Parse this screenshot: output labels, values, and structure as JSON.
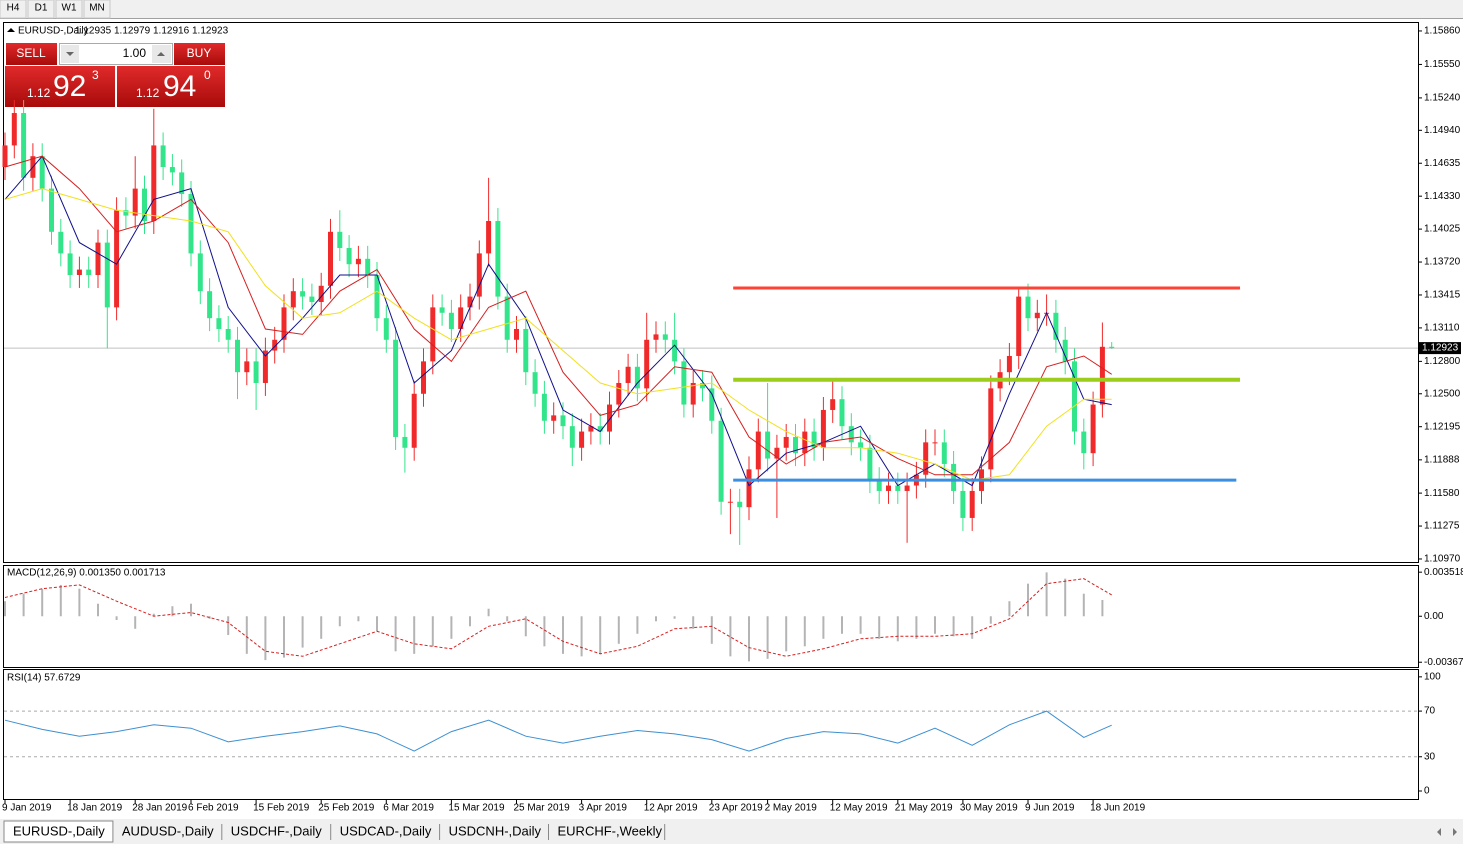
{
  "toolbar": [
    "H4",
    "D1",
    "W1",
    "MN"
  ],
  "trade_panel": {
    "sell": "SELL",
    "buy": "BUY",
    "lot": "1.00",
    "bid": {
      "big": "1.12",
      "main": "92",
      "sup": "3"
    },
    "ask": {
      "big": "1.12",
      "main": "94",
      "sup": "0"
    }
  },
  "chart_data": {
    "type": "candlestick",
    "title": "EURUSD-,Daily",
    "categories": [
      "9 Jan 2019",
      null,
      null,
      null,
      null,
      null,
      null,
      "18 Jan 2019",
      null,
      null,
      null,
      null,
      null,
      null,
      "28 Jan 2019",
      null,
      null,
      null,
      null,
      null,
      "6 Feb 2019",
      null,
      null,
      null,
      null,
      null,
      null,
      "15 Feb 2019",
      null,
      null,
      null,
      null,
      null,
      null,
      "25 Feb 2019",
      null,
      null,
      null,
      null,
      null,
      null,
      "6 Mar 2019",
      null,
      null,
      null,
      null,
      null,
      null,
      "15 Mar 2019",
      null,
      null,
      null,
      null,
      null,
      null,
      "25 Mar 2019",
      null,
      null,
      null,
      null,
      null,
      null,
      "3 Apr 2019",
      null,
      null,
      null,
      null,
      null,
      null,
      "12 Apr 2019",
      null,
      null,
      null,
      null,
      null,
      null,
      "23 Apr 2019",
      null,
      null,
      null,
      null,
      null,
      "2 May 2019",
      null,
      null,
      null,
      null,
      null,
      null,
      "12 May 2019",
      null,
      null,
      null,
      null,
      null,
      null,
      "21 May 2019",
      null,
      null,
      null,
      null,
      null,
      null,
      "30 May 2019",
      null,
      null,
      null,
      null,
      null,
      null,
      "9 Jun 2019",
      null,
      null,
      null,
      null,
      null,
      null,
      "18 Jun 2019",
      null,
      null
    ],
    "open": [
      1.146,
      1.148,
      1.151,
      1.145,
      1.147,
      1.144,
      1.14,
      1.138,
      1.136,
      1.1365,
      1.136,
      1.139,
      1.133,
      1.142,
      1.1415,
      1.144,
      1.141,
      1.148,
      1.146,
      1.1455,
      1.1435,
      1.138,
      1.1345,
      1.132,
      1.131,
      1.13,
      1.127,
      1.128,
      1.126,
      1.129,
      1.13,
      1.133,
      1.1345,
      1.134,
      1.1335,
      1.135,
      1.14,
      1.1385,
      1.137,
      1.1375,
      1.136,
      1.132,
      1.13,
      1.121,
      1.12,
      1.125,
      1.128,
      1.133,
      1.1325,
      1.131,
      1.133,
      1.134,
      1.138,
      1.141,
      1.134,
      1.13,
      1.131,
      1.127,
      1.125,
      1.1225,
      1.123,
      1.122,
      1.12,
      1.1215,
      1.122,
      1.1215,
      1.124,
      1.126,
      1.1275,
      1.1255,
      1.13,
      1.1305,
      1.13,
      1.128,
      1.124,
      1.126,
      1.1255,
      1.1225,
      1.115,
      1.115,
      1.1145,
      1.118,
      1.1215,
      1.119,
      1.12,
      1.121,
      1.1195,
      1.1215,
      1.12,
      1.1235,
      1.1245,
      1.122,
      1.1205,
      1.12,
      1.117,
      1.116,
      1.1165,
      1.116,
      1.1165,
      1.1175,
      1.1205,
      1.1205,
      1.1185,
      1.116,
      1.1135,
      1.116,
      1.118,
      1.1255,
      1.127,
      1.1285,
      1.134,
      1.132,
      1.1325,
      1.1325,
      1.13,
      1.128,
      1.1215,
      1.1195,
      1.124,
      1.12935
    ],
    "high": [
      1.1492,
      1.1522,
      1.1522,
      1.1482,
      1.1482,
      1.1452,
      1.1412,
      1.1392,
      1.1377,
      1.1377,
      1.1402,
      1.1402,
      1.1432,
      1.1432,
      1.147,
      1.1452,
      1.1514,
      1.1492,
      1.1472,
      1.1467,
      1.1447,
      1.1392,
      1.1357,
      1.1332,
      1.1322,
      1.1312,
      1.1292,
      1.1292,
      1.1302,
      1.1312,
      1.1342,
      1.1357,
      1.1357,
      1.1352,
      1.1362,
      1.1412,
      1.142,
      1.1397,
      1.1387,
      1.1387,
      1.1372,
      1.1332,
      1.1312,
      1.1222,
      1.1262,
      1.1292,
      1.1342,
      1.1342,
      1.1337,
      1.1342,
      1.1352,
      1.1392,
      1.145,
      1.1422,
      1.1352,
      1.1322,
      1.1322,
      1.1282,
      1.1262,
      1.1242,
      1.1242,
      1.1232,
      1.1227,
      1.1232,
      1.1232,
      1.1252,
      1.1272,
      1.1287,
      1.1287,
      1.1325,
      1.1317,
      1.1317,
      1.1325,
      1.1292,
      1.1272,
      1.1272,
      1.1267,
      1.1237,
      1.1162,
      1.1162,
      1.1192,
      1.1227,
      1.126,
      1.1212,
      1.1222,
      1.1222,
      1.1227,
      1.1227,
      1.1247,
      1.1262,
      1.1257,
      1.1232,
      1.1217,
      1.1212,
      1.1182,
      1.1177,
      1.1177,
      1.1177,
      1.1187,
      1.1217,
      1.1217,
      1.1217,
      1.1197,
      1.1172,
      1.1172,
      1.1192,
      1.1267,
      1.1282,
      1.1297,
      1.1348,
      1.1352,
      1.1337,
      1.1342,
      1.1337,
      1.1312,
      1.1292,
      1.1227,
      1.1252,
      1.1316,
      1.12979
    ],
    "low": [
      1.1448,
      1.1468,
      1.1438,
      1.1438,
      1.1428,
      1.1388,
      1.1368,
      1.1348,
      1.1348,
      1.1348,
      1.1348,
      1.1292,
      1.1318,
      1.1403,
      1.1403,
      1.1398,
      1.1398,
      1.1448,
      1.1443,
      1.1423,
      1.1368,
      1.1333,
      1.1308,
      1.1298,
      1.1288,
      1.1245,
      1.1258,
      1.1235,
      1.1248,
      1.1278,
      1.1288,
      1.1318,
      1.1328,
      1.1323,
      1.1323,
      1.1338,
      1.1373,
      1.1358,
      1.1358,
      1.1348,
      1.1308,
      1.1288,
      1.1198,
      1.1177,
      1.1188,
      1.1238,
      1.1268,
      1.1313,
      1.1298,
      1.1298,
      1.1318,
      1.1328,
      1.1368,
      1.1328,
      1.1288,
      1.1288,
      1.1258,
      1.1238,
      1.1213,
      1.1213,
      1.1208,
      1.1183,
      1.1188,
      1.1203,
      1.1203,
      1.1203,
      1.1228,
      1.1248,
      1.1243,
      1.1243,
      1.1288,
      1.1288,
      1.1268,
      1.1228,
      1.1228,
      1.1243,
      1.1213,
      1.1138,
      1.112,
      1.111,
      1.1133,
      1.1168,
      1.1178,
      1.1135,
      1.1188,
      1.1183,
      1.1183,
      1.1188,
      1.1188,
      1.1223,
      1.1208,
      1.1193,
      1.1188,
      1.1158,
      1.1148,
      1.1148,
      1.1148,
      1.1112,
      1.1153,
      1.1163,
      1.1193,
      1.1173,
      1.1148,
      1.1123,
      1.1123,
      1.1148,
      1.1168,
      1.1243,
      1.1258,
      1.1273,
      1.1308,
      1.1308,
      1.1313,
      1.1288,
      1.1268,
      1.1203,
      1.118,
      1.1183,
      1.1228,
      1.12916
    ],
    "close": [
      1.148,
      1.151,
      1.145,
      1.147,
      1.144,
      1.14,
      1.138,
      1.136,
      1.1365,
      1.136,
      1.139,
      1.133,
      1.142,
      1.1415,
      1.144,
      1.141,
      1.148,
      1.146,
      1.1455,
      1.1435,
      1.138,
      1.1345,
      1.132,
      1.131,
      1.13,
      1.127,
      1.128,
      1.126,
      1.129,
      1.13,
      1.133,
      1.1345,
      1.134,
      1.1335,
      1.135,
      1.14,
      1.1385,
      1.137,
      1.1375,
      1.136,
      1.132,
      1.13,
      1.121,
      1.12,
      1.125,
      1.128,
      1.133,
      1.1325,
      1.131,
      1.133,
      1.134,
      1.138,
      1.141,
      1.134,
      1.13,
      1.131,
      1.127,
      1.125,
      1.1225,
      1.123,
      1.122,
      1.12,
      1.1215,
      1.122,
      1.1215,
      1.124,
      1.126,
      1.1275,
      1.1255,
      1.13,
      1.1305,
      1.13,
      1.128,
      1.124,
      1.126,
      1.1255,
      1.1225,
      1.115,
      1.115,
      1.1145,
      1.118,
      1.1215,
      1.119,
      1.12,
      1.121,
      1.1195,
      1.1215,
      1.12,
      1.1235,
      1.1245,
      1.122,
      1.1205,
      1.12,
      1.117,
      1.116,
      1.1165,
      1.116,
      1.1165,
      1.1175,
      1.1205,
      1.1205,
      1.1185,
      1.116,
      1.1135,
      1.116,
      1.118,
      1.1255,
      1.127,
      1.1285,
      1.134,
      1.132,
      1.1325,
      1.1325,
      1.13,
      1.128,
      1.1215,
      1.1195,
      1.124,
      1.12935,
      1.12923
    ],
    "up_color": "#f02a2a",
    "down_color": "#33e58a",
    "ylim": [
      1.10942,
      1.15943
    ],
    "yticks": [
      {
        "value": 1.1586,
        "label": "1.15860"
      },
      {
        "value": 1.1555,
        "label": "1.15550"
      },
      {
        "value": 1.1524,
        "label": "1.15240"
      },
      {
        "value": 1.1494,
        "label": "1.14940"
      },
      1.14635,
      {
        "value": 1.1433,
        "label": "1.14330"
      },
      1.14025,
      {
        "value": 1.1372,
        "label": "1.13720"
      },
      1.13415,
      {
        "value": 1.1311,
        "label": "1.13110"
      },
      {
        "value": 1.128,
        "label": "1.12800"
      },
      {
        "value": 1.125,
        "label": "1.12500"
      },
      1.12195,
      1.11888,
      {
        "value": 1.1158,
        "label": "1.11580"
      },
      1.11275,
      {
        "value": 1.1097,
        "label": "1.10970"
      }
    ],
    "current_price": 1.12923,
    "moving_averages": [
      {
        "color": "#10108c",
        "x": [
          0,
          4,
          8,
          12,
          16,
          20,
          24,
          28,
          32,
          36,
          40,
          44,
          48,
          52,
          56,
          60,
          64,
          68,
          72,
          76,
          80,
          84,
          88,
          92,
          96,
          100,
          104,
          108,
          112,
          116,
          119
        ],
        "values": [
          1.143,
          1.147,
          1.139,
          1.137,
          1.143,
          1.144,
          1.133,
          1.1285,
          1.132,
          1.136,
          1.136,
          1.126,
          1.129,
          1.137,
          1.132,
          1.1235,
          1.1215,
          1.126,
          1.1295,
          1.125,
          1.1165,
          1.1195,
          1.1205,
          1.122,
          1.1165,
          1.1185,
          1.1165,
          1.125,
          1.1325,
          1.1245,
          1.124
        ]
      },
      {
        "color": "#d42020",
        "x": [
          0,
          4,
          8,
          12,
          16,
          20,
          24,
          28,
          32,
          36,
          40,
          44,
          48,
          52,
          56,
          60,
          64,
          68,
          72,
          76,
          80,
          84,
          88,
          92,
          96,
          100,
          104,
          108,
          112,
          116,
          119
        ],
        "values": [
          1.146,
          1.147,
          1.144,
          1.14,
          1.141,
          1.143,
          1.139,
          1.131,
          1.1305,
          1.1345,
          1.1365,
          1.131,
          1.128,
          1.133,
          1.1345,
          1.127,
          1.123,
          1.124,
          1.1275,
          1.127,
          1.121,
          1.1185,
          1.1205,
          1.121,
          1.119,
          1.1175,
          1.1175,
          1.1205,
          1.1275,
          1.1285,
          1.1268
        ]
      },
      {
        "color": "#f2e01c",
        "x": [
          0,
          4,
          8,
          12,
          16,
          20,
          24,
          28,
          32,
          36,
          40,
          44,
          48,
          52,
          56,
          60,
          64,
          68,
          72,
          76,
          80,
          84,
          88,
          92,
          96,
          100,
          104,
          108,
          112,
          116,
          119
        ],
        "values": [
          1.143,
          1.144,
          1.143,
          1.142,
          1.1415,
          1.141,
          1.14,
          1.135,
          1.132,
          1.1325,
          1.1345,
          1.132,
          1.13,
          1.131,
          1.132,
          1.129,
          1.126,
          1.125,
          1.1255,
          1.126,
          1.1235,
          1.1215,
          1.12,
          1.12,
          1.1195,
          1.1185,
          1.117,
          1.1175,
          1.122,
          1.1245,
          1.1245
        ]
      }
    ],
    "levels": [
      {
        "value": 1.1348,
        "color": "#ff4136",
        "width": 3,
        "x": [
          78.3,
          132.8
        ]
      },
      {
        "value": 1.1263,
        "color": "#9ccc1c",
        "width": 4,
        "x": [
          78.3,
          132.8
        ]
      },
      {
        "value": 1.117,
        "color": "#3a8fe0",
        "width": 3,
        "x": [
          78.3,
          132.4
        ]
      }
    ],
    "macd": {
      "title": "MACD(12,26,9) 0.001350 0.001713",
      "ylim": [
        -0.00405,
        0.00401
      ],
      "yticks": [
        0.003518,
        {
          "value": 0,
          "label": "0.00"
        },
        -0.00367
      ],
      "histogram": {
        "color": "#b4b4b4",
        "x": [
          0,
          2,
          4,
          6,
          8,
          10,
          12,
          14,
          16,
          18,
          20,
          22,
          24,
          26,
          28,
          30,
          32,
          34,
          36,
          38,
          40,
          42,
          44,
          46,
          48,
          50,
          52,
          54,
          56,
          58,
          60,
          62,
          64,
          66,
          68,
          70,
          72,
          74,
          76,
          78,
          80,
          82,
          84,
          86,
          88,
          90,
          92,
          94,
          96,
          98,
          100,
          102,
          104,
          106,
          108,
          110,
          112,
          114,
          116,
          118
        ],
        "values": [
          0.0012,
          0.0018,
          0.0022,
          0.0025,
          0.0022,
          0.001,
          -0.0003,
          -0.001,
          0.0002,
          0.0008,
          0.001,
          -0.0002,
          -0.0015,
          -0.003,
          -0.0035,
          -0.0033,
          -0.0025,
          -0.0018,
          -0.0008,
          -0.0004,
          -0.0012,
          -0.0028,
          -0.003,
          -0.0024,
          -0.0018,
          -0.0008,
          0.0006,
          -0.0004,
          -0.0016,
          -0.0024,
          -0.003,
          -0.0032,
          -0.003,
          -0.0022,
          -0.0014,
          -0.0004,
          -0.0002,
          -0.001,
          -0.0022,
          -0.0032,
          -0.0036,
          -0.0034,
          -0.0028,
          -0.0024,
          -0.0018,
          -0.0014,
          -0.0014,
          -0.0018,
          -0.002,
          -0.0018,
          -0.0014,
          -0.0016,
          -0.0018,
          -0.0006,
          0.0012,
          0.0026,
          0.0035,
          0.003,
          0.0018,
          0.0013
        ]
      },
      "signal": {
        "color": "#d42020",
        "x": [
          0,
          4,
          8,
          12,
          16,
          20,
          24,
          28,
          32,
          36,
          40,
          44,
          48,
          52,
          56,
          60,
          64,
          68,
          72,
          76,
          80,
          84,
          88,
          92,
          96,
          100,
          104,
          108,
          112,
          116,
          119
        ],
        "values": [
          0.0015,
          0.0022,
          0.0025,
          0.0012,
          0.0,
          0.0003,
          -0.0005,
          -0.0028,
          -0.0032,
          -0.0022,
          -0.0012,
          -0.0022,
          -0.0026,
          -0.0008,
          -0.0002,
          -0.002,
          -0.003,
          -0.0024,
          -0.001,
          -0.0008,
          -0.0025,
          -0.0032,
          -0.0026,
          -0.0018,
          -0.0016,
          -0.0016,
          -0.0014,
          -0.0002,
          0.0026,
          0.003,
          0.0017
        ]
      }
    },
    "rsi": {
      "title": "RSI(14) 57.6729",
      "ylim": [
        -7,
        106
      ],
      "yticks": [
        100,
        70,
        30,
        0
      ],
      "grid_levels": [
        70,
        30
      ],
      "color": "#3d8fd1",
      "x": [
        0,
        4,
        8,
        12,
        16,
        20,
        24,
        28,
        32,
        36,
        40,
        44,
        48,
        52,
        56,
        60,
        64,
        68,
        72,
        76,
        80,
        84,
        88,
        92,
        96,
        100,
        104,
        108,
        112,
        116,
        119
      ],
      "values": [
        62,
        54,
        48,
        52,
        58,
        55,
        43,
        48,
        52,
        57,
        50,
        35,
        52,
        62,
        48,
        42,
        48,
        53,
        50,
        45,
        35,
        46,
        52,
        50,
        42,
        55,
        40,
        58,
        70,
        47,
        57.6729
      ]
    }
  },
  "tabs": [
    "EURUSD-,Daily",
    "AUDUSD-,Daily",
    "USDCHF-,Daily",
    "USDCAD-,Daily",
    "USDCNH-,Daily",
    "EURCHF-,Weekly"
  ]
}
